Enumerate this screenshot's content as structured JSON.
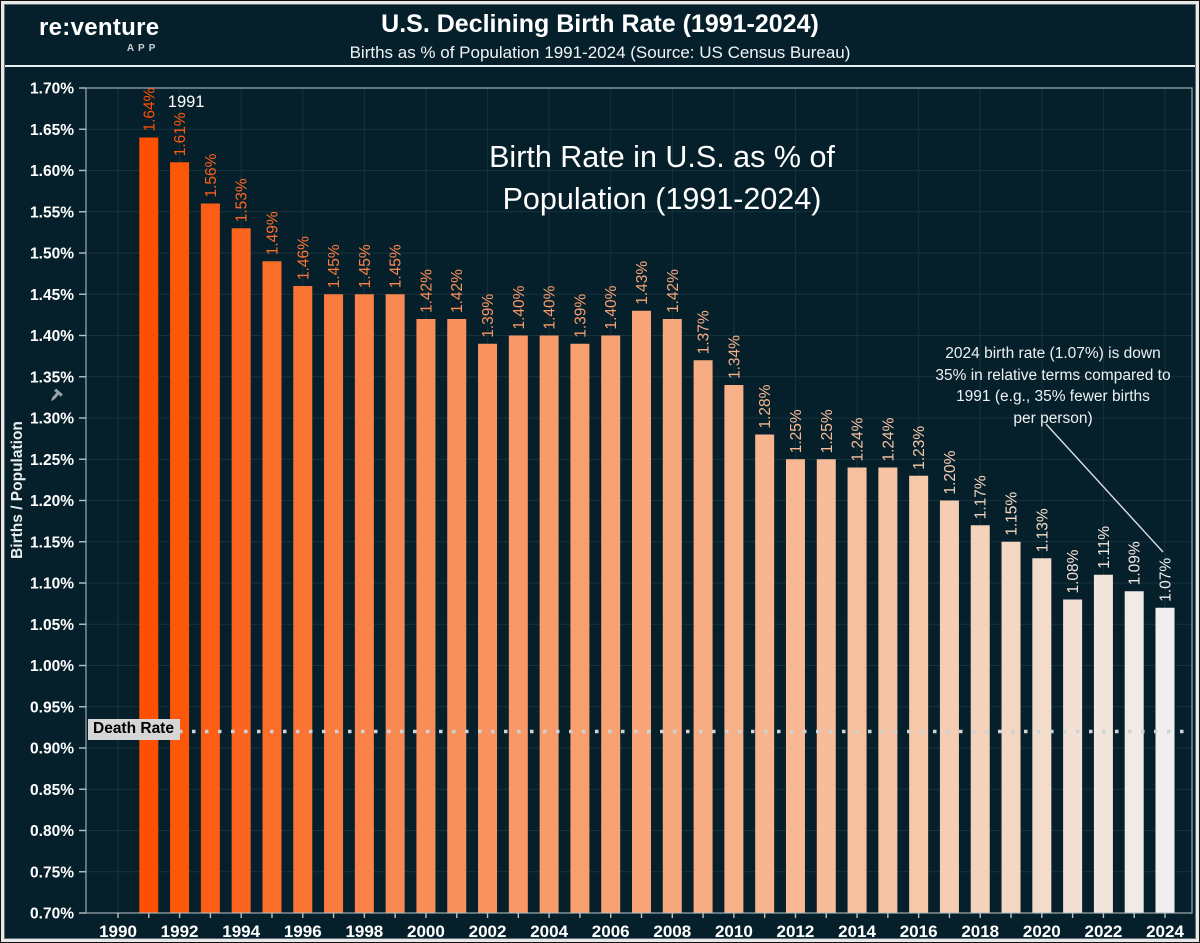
{
  "header": {
    "logo_main": "re:venture",
    "logo_sub": "APP",
    "title": "U.S. Declining Birth Rate (1991-2024)",
    "subtitle": "Births as % of Population 1991-2024 (Source: US Census Bureau)"
  },
  "chart_data": {
    "type": "bar",
    "title": "Birth Rate in U.S. as % of\nPopulation (1991-2024)",
    "ylabel": "Births / Population",
    "ylim": [
      0.7,
      1.7
    ],
    "ytick_step": 0.05,
    "ytick_labels": [
      "1.70%",
      "1.65%",
      "1.60%",
      "1.55%",
      "1.50%",
      "1.45%",
      "1.40%",
      "1.35%",
      "1.30%",
      "1.25%",
      "1.20%",
      "1.15%",
      "1.10%",
      "1.05%",
      "1.00%",
      "0.95%",
      "0.90%",
      "0.85%",
      "0.80%",
      "0.75%",
      "0.70%"
    ],
    "xticks": [
      1990,
      1992,
      1994,
      1996,
      1998,
      2000,
      2002,
      2004,
      2006,
      2008,
      2010,
      2012,
      2014,
      2016,
      2018,
      2020,
      2022,
      2024
    ],
    "categories": [
      1991,
      1992,
      1993,
      1994,
      1995,
      1996,
      1997,
      1998,
      1999,
      2000,
      2001,
      2002,
      2003,
      2004,
      2005,
      2006,
      2007,
      2008,
      2009,
      2010,
      2011,
      2012,
      2013,
      2014,
      2015,
      2016,
      2017,
      2018,
      2019,
      2020,
      2021,
      2022,
      2023,
      2024
    ],
    "values": [
      1.64,
      1.61,
      1.56,
      1.53,
      1.49,
      1.46,
      1.45,
      1.45,
      1.45,
      1.42,
      1.42,
      1.39,
      1.4,
      1.4,
      1.39,
      1.4,
      1.43,
      1.42,
      1.37,
      1.34,
      1.28,
      1.25,
      1.25,
      1.24,
      1.24,
      1.23,
      1.2,
      1.17,
      1.15,
      1.13,
      1.08,
      1.11,
      1.09,
      1.07
    ],
    "value_labels": [
      "1.64%",
      "1.61%",
      "1.56%",
      "1.53%",
      "1.49%",
      "1.46%",
      "1.45%",
      "1.45%",
      "1.45%",
      "1.42%",
      "1.42%",
      "1.39%",
      "1.40%",
      "1.40%",
      "1.39%",
      "1.40%",
      "1.43%",
      "1.42%",
      "1.37%",
      "1.34%",
      "1.28%",
      "1.25%",
      "1.25%",
      "1.24%",
      "1.24%",
      "1.23%",
      "1.20%",
      "1.17%",
      "1.15%",
      "1.13%",
      "1.08%",
      "1.11%",
      "1.09%",
      "1.07%"
    ],
    "first_bar_callout": "1991",
    "death_rate": {
      "label": "Death Rate",
      "value": 0.92
    },
    "annotation_text": "2024 birth rate (1.07%) is down\n35% in relative terms compared to\n1991 (e.g., 35% fewer births\nper person)",
    "legend": null,
    "grid": true,
    "colors": {
      "background": "#06202B",
      "grid": "#16323D",
      "axis": "#B7C1C6",
      "tick_text": "#FFFFFF",
      "death_line": "#CDD3D7",
      "death_label_bg": "#D6D6D6",
      "annotation_line": "#D9DEE1",
      "bar_gradient": [
        {
          "t": 0.0,
          "color": "#FE5000"
        },
        {
          "t": 0.25,
          "color": "#F98B55"
        },
        {
          "t": 0.5,
          "color": "#F8A67A"
        },
        {
          "t": 0.75,
          "color": "#F6C7A8"
        },
        {
          "t": 1.0,
          "color": "#F1EFED"
        }
      ]
    }
  }
}
